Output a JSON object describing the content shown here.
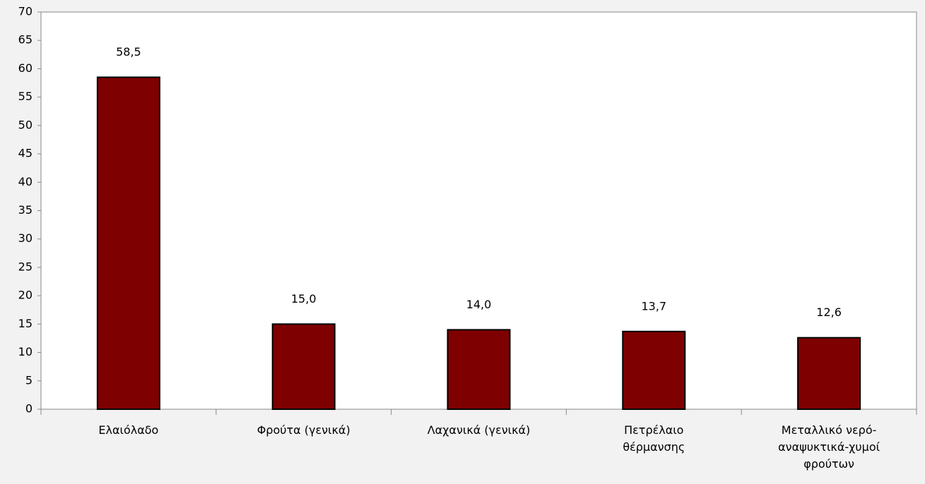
{
  "chart_data": {
    "type": "bar",
    "categories": [
      "Ελαιόλαδο",
      "Φρούτα (γενικά)",
      "Λαχανικά (γενικά)",
      "Πετρέλαιο θέρμανσης",
      "Μεταλλικό νερό-αναψυκτικά-χυμοί φρούτων"
    ],
    "values": [
      58.5,
      15.0,
      14.0,
      13.7,
      12.6
    ],
    "value_labels": [
      "58,5",
      "15,0",
      "14,0",
      "13,7",
      "12,6"
    ],
    "color": "#7f0000",
    "ylim": [
      0,
      70
    ],
    "yticks": [
      0,
      5,
      10,
      15,
      20,
      25,
      30,
      35,
      40,
      45,
      50,
      55,
      60,
      65,
      70
    ],
    "grid": false
  }
}
